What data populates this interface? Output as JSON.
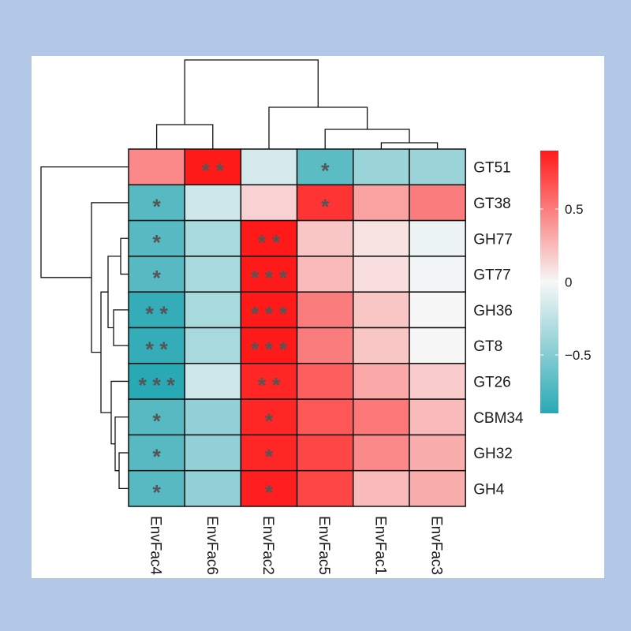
{
  "chart_data": {
    "type": "heatmap",
    "title": "",
    "rows": [
      "GT51",
      "GT38",
      "GH77",
      "GT77",
      "GH36",
      "GT8",
      "GT26",
      "CBM34",
      "GH32",
      "GH4"
    ],
    "columns": [
      "EnvFac4",
      "EnvFac6",
      "EnvFac2",
      "EnvFac5",
      "EnvFac1",
      "EnvFac3"
    ],
    "values": [
      [
        0.45,
        0.92,
        -0.15,
        -0.68,
        -0.4,
        -0.4
      ],
      [
        -0.7,
        -0.18,
        0.15,
        0.8,
        0.35,
        0.5
      ],
      [
        -0.7,
        -0.35,
        0.92,
        0.2,
        0.08,
        -0.05
      ],
      [
        -0.7,
        -0.35,
        0.92,
        0.25,
        0.1,
        -0.03
      ],
      [
        -0.85,
        -0.35,
        0.95,
        0.5,
        0.2,
        0.0
      ],
      [
        -0.85,
        -0.35,
        0.95,
        0.5,
        0.2,
        0.0
      ],
      [
        -0.9,
        -0.18,
        0.85,
        0.62,
        0.32,
        0.18
      ],
      [
        -0.7,
        -0.45,
        0.85,
        0.65,
        0.52,
        0.25
      ],
      [
        -0.7,
        -0.45,
        0.85,
        0.72,
        0.45,
        0.3
      ],
      [
        -0.7,
        -0.45,
        0.88,
        0.72,
        0.25,
        0.3
      ]
    ],
    "significance": [
      [
        "",
        "**",
        "",
        "*",
        "",
        ""
      ],
      [
        "*",
        "",
        "",
        "*",
        "",
        ""
      ],
      [
        "*",
        "",
        "**",
        "",
        "",
        ""
      ],
      [
        "*",
        "",
        "***",
        "",
        "",
        ""
      ],
      [
        "**",
        "",
        "***",
        "",
        "",
        ""
      ],
      [
        "**",
        "",
        "***",
        "",
        "",
        ""
      ],
      [
        "***",
        "",
        "**",
        "",
        "",
        ""
      ],
      [
        "*",
        "",
        "*",
        "",
        "",
        ""
      ],
      [
        "*",
        "",
        "*",
        "",
        "",
        ""
      ],
      [
        "*",
        "",
        "*",
        "",
        "",
        ""
      ]
    ],
    "color_scale": {
      "min": -0.9,
      "max": 0.9,
      "low_color": "#29a9b4",
      "mid_color": "#f7f7f7",
      "high_color": "#ff1a1a",
      "ticks": [
        0.5,
        0,
        -0.5
      ],
      "tick_labels": [
        "0.5",
        "0",
        "−0.5"
      ]
    },
    "row_dendrogram": true,
    "column_dendrogram": true,
    "legend_position": "right"
  }
}
